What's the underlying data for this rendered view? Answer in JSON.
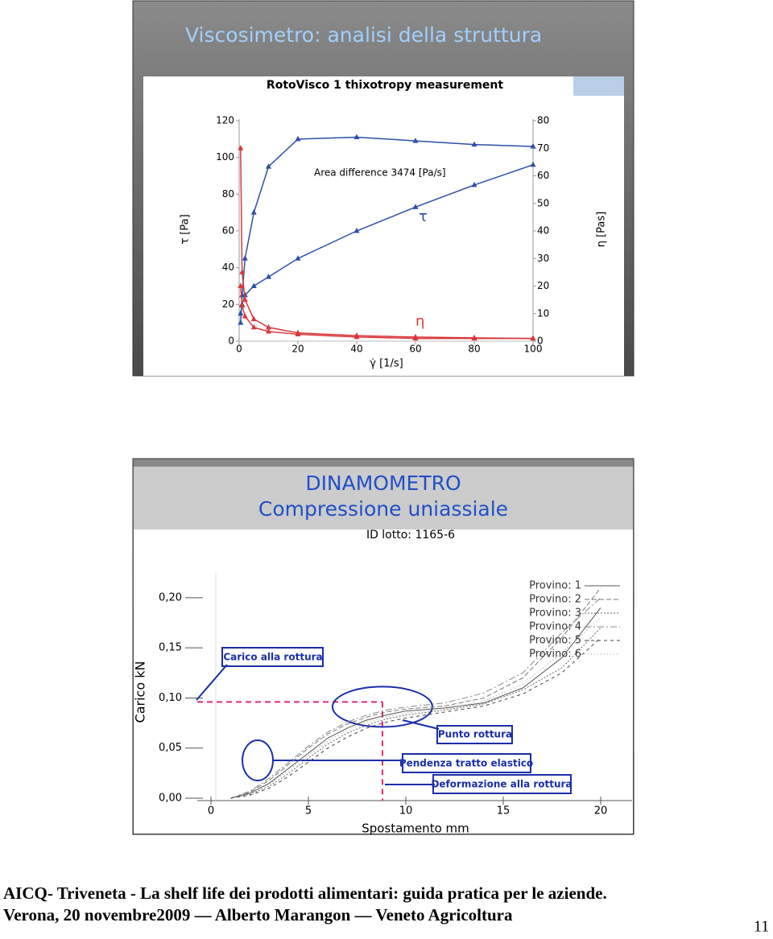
{
  "slide_title": "Viscosimetro: analisi della struttura",
  "section2": {
    "title": "DINAMOMETRO",
    "subtitle": "Compressione uniassiale"
  },
  "footer": {
    "line1": "AICQ- Triveneta - La shelf life dei prodotti alimentari: guida pratica per le aziende.",
    "line2": "Verona, 20 novembre2009 — Alberto Marangon — Veneto Agricoltura",
    "page": "11"
  },
  "chart_data": [
    {
      "type": "line",
      "title": "RotoVisco 1 thixotropy measurement",
      "x_label": "γ̇ [1/s]",
      "y_label": "τ [Pa]",
      "y2_label": "η [Pas]",
      "annotations": [
        "Area difference 3474 [Pa/s]",
        "τ",
        "η"
      ],
      "x": [
        0.5,
        1,
        2,
        5,
        10,
        20,
        40,
        60,
        80,
        100
      ],
      "xlim": [
        0,
        100
      ],
      "xticks": [
        0,
        20,
        40,
        60,
        80,
        100
      ],
      "ylim": [
        0,
        120
      ],
      "yticks": [
        0,
        20,
        40,
        60,
        80,
        100,
        120
      ],
      "y2lim": [
        0,
        80
      ],
      "y2ticks": [
        0,
        10,
        20,
        30,
        40,
        50,
        60,
        70,
        80
      ],
      "series": [
        {
          "color": "#2b4fa8",
          "values": [
            10,
            25,
            45,
            70,
            95,
            110,
            111,
            109,
            107,
            106
          ]
        },
        {
          "color": "#2b4fa8",
          "values": [
            15,
            20,
            25,
            30,
            35,
            45,
            60,
            73,
            85,
            96
          ]
        },
        {
          "color": "#d9373a",
          "axis": "y2",
          "values": [
            70,
            25,
            15,
            8,
            5,
            3,
            2,
            1.5,
            1.2,
            1
          ]
        },
        {
          "color": "#d9373a",
          "axis": "y2",
          "values": [
            20,
            13,
            9,
            5,
            3.5,
            2.5,
            1.5,
            1,
            1,
            1
          ]
        }
      ]
    },
    {
      "type": "line",
      "title": "ID lotto: 1165-6",
      "x_label": "Spostamento mm",
      "y_label": "Carico kN",
      "annotations": [
        "Carico alla rottura",
        "Punto rottura",
        "Pendenza tratto elastico",
        "Deformazione alla rottura"
      ],
      "break_point": {
        "x": 8.8,
        "y": 0.096
      },
      "x": [
        1,
        2,
        3,
        4,
        5,
        6,
        7,
        8,
        9,
        10,
        12,
        14,
        16,
        18,
        20
      ],
      "xlim": [
        0,
        20
      ],
      "xticks": [
        0,
        5,
        10,
        15,
        20
      ],
      "ylim": [
        0,
        0.22
      ],
      "yticks": [
        {
          "value": 0,
          "label": "0,00"
        },
        {
          "value": 0.05,
          "label": "0,05"
        },
        {
          "value": 0.1,
          "label": "0,10"
        },
        {
          "value": 0.15,
          "label": "0,15"
        },
        {
          "value": 0.2,
          "label": "0,20"
        }
      ],
      "series": [
        {
          "name": "Provino: 1",
          "color": "#555555",
          "values": [
            0,
            0.005,
            0.015,
            0.03,
            0.045,
            0.06,
            0.07,
            0.078,
            0.083,
            0.087,
            0.09,
            0.095,
            0.11,
            0.14,
            0.19
          ]
        },
        {
          "name": "Provino: 2",
          "color": "#777777",
          "values": [
            0,
            0.006,
            0.018,
            0.034,
            0.05,
            0.064,
            0.074,
            0.081,
            0.086,
            0.089,
            0.092,
            0.1,
            0.12,
            0.16,
            0.21
          ]
        },
        {
          "name": "Provino: 3",
          "color": "#666666",
          "values": [
            0,
            0.004,
            0.012,
            0.025,
            0.04,
            0.054,
            0.065,
            0.073,
            0.079,
            0.083,
            0.088,
            0.094,
            0.108,
            0.13,
            0.17
          ]
        },
        {
          "name": "Provino: 4",
          "color": "#888888",
          "values": [
            0,
            0.007,
            0.02,
            0.036,
            0.052,
            0.066,
            0.076,
            0.083,
            0.088,
            0.091,
            0.095,
            0.105,
            0.125,
            0.165,
            0.2
          ]
        },
        {
          "name": "Provino: 5",
          "color": "#444444",
          "values": [
            0,
            0.003,
            0.01,
            0.022,
            0.036,
            0.05,
            0.061,
            0.07,
            0.076,
            0.08,
            0.086,
            0.092,
            0.104,
            0.125,
            0.16
          ]
        },
        {
          "name": "Provino: 6",
          "color": "#999999",
          "values": [
            0,
            0.005,
            0.014,
            0.028,
            0.043,
            0.057,
            0.068,
            0.076,
            0.081,
            0.085,
            0.089,
            0.097,
            0.114,
            0.145,
            0.18
          ]
        }
      ]
    }
  ]
}
